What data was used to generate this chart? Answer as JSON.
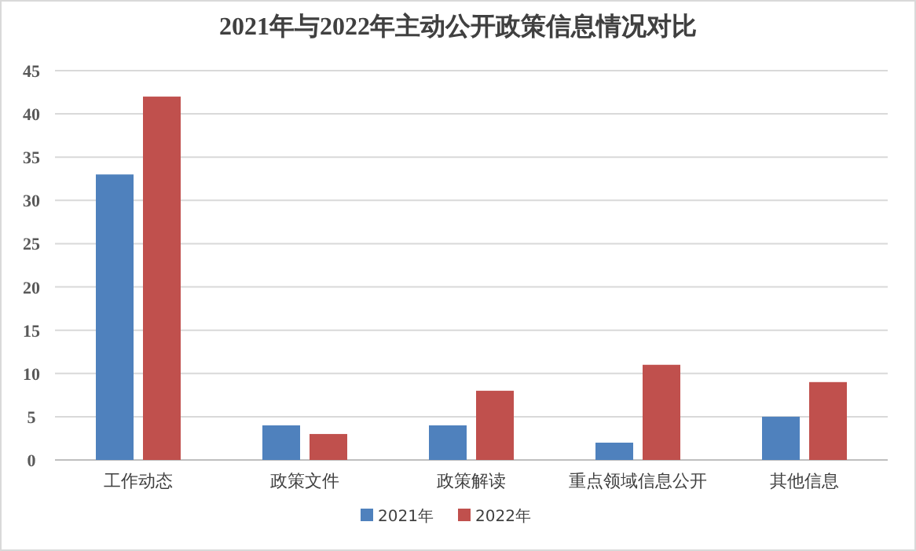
{
  "chart_data": {
    "type": "bar",
    "title": "2021年与2022年主动公开政策信息情况对比",
    "categories": [
      "工作动态",
      "政策文件",
      "政策解读",
      "重点领域信息公开",
      "其他信息"
    ],
    "series": [
      {
        "name": "2021年",
        "color": "#4f81bd",
        "values": [
          33,
          4,
          4,
          2,
          5
        ]
      },
      {
        "name": "2022年",
        "color": "#c0504d",
        "values": [
          42,
          3,
          8,
          11,
          9
        ]
      }
    ],
    "ylim": [
      0,
      45
    ],
    "yticks": [
      0,
      5,
      10,
      15,
      20,
      25,
      30,
      35,
      40,
      45
    ],
    "grid": "y",
    "legend": "bottom"
  }
}
